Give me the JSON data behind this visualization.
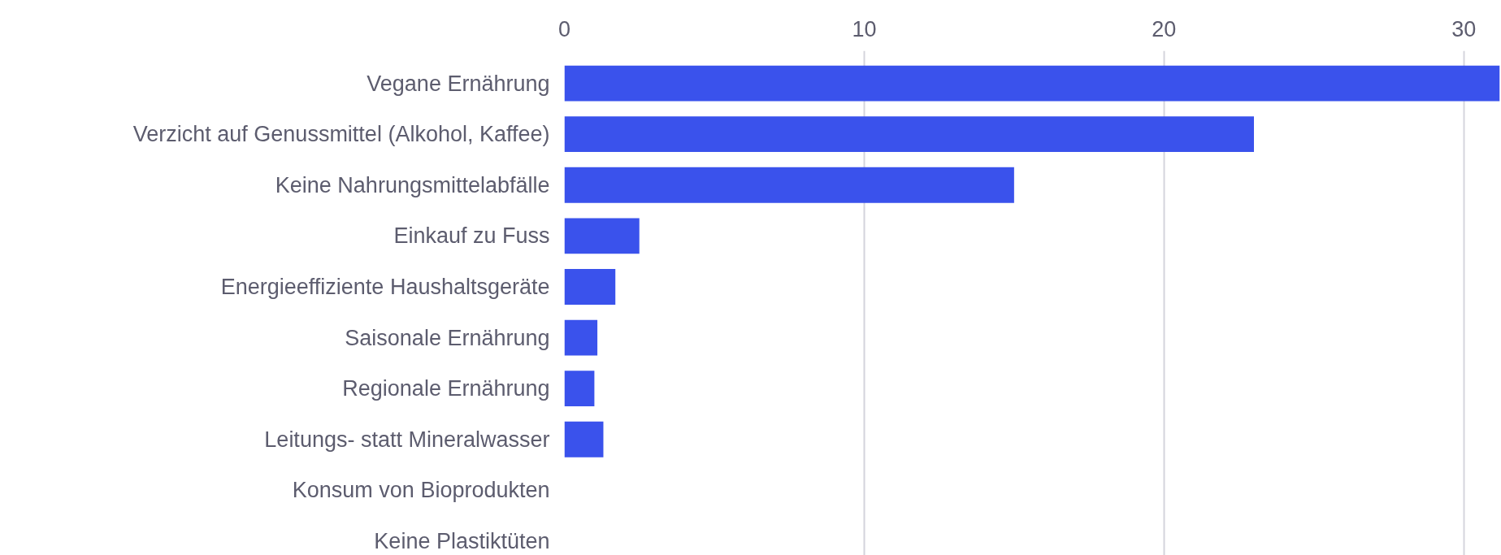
{
  "chart_data": {
    "type": "bar",
    "orientation": "horizontal",
    "categories": [
      "Vegane Ernährung",
      "Verzicht auf Genussmittel (Alkohol, Kaffee)",
      "Keine Nahrungsmittelabfälle",
      "Einkauf zu Fuss",
      "Energieeffiziente Haushaltsgeräte",
      "Saisonale Ernährung",
      "Regionale Ernährung",
      "Leitungs- statt Mineralwasser",
      "Konsum von Bioprodukten",
      "Keine Plastiktüten"
    ],
    "values": [
      31.2,
      23,
      15,
      2.5,
      1.7,
      1.1,
      1,
      1.3,
      0,
      0
    ],
    "color": "#3a52ec",
    "xlim": [
      0,
      31.2
    ],
    "xticks": [
      0,
      10,
      20,
      30
    ],
    "grid": "x"
  }
}
